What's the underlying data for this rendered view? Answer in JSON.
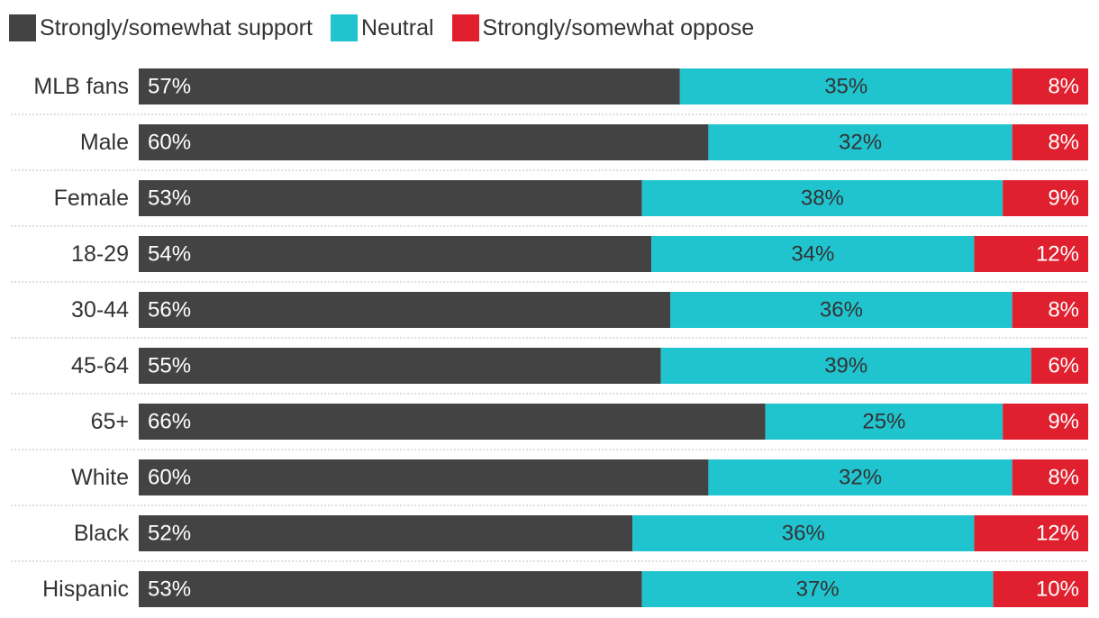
{
  "chart_data": {
    "type": "bar",
    "orientation": "horizontal",
    "stacked": true,
    "categories": [
      "MLB fans",
      "Male",
      "Female",
      "18-29",
      "30-44",
      "45-64",
      "65+",
      "White",
      "Black",
      "Hispanic"
    ],
    "series": [
      {
        "name": "Strongly/somewhat support",
        "color": "#434344",
        "label_color": "#ffffff",
        "values": [
          57,
          60,
          53,
          54,
          56,
          55,
          66,
          60,
          52,
          53
        ],
        "labels": [
          "57%",
          "60%",
          "53%",
          "54%",
          "56%",
          "55%",
          "66%",
          "60%",
          "52%",
          "53%"
        ]
      },
      {
        "name": "Neutral",
        "color": "#20c4cf",
        "label_color": "#333333",
        "values": [
          35,
          32,
          38,
          34,
          36,
          39,
          25,
          32,
          36,
          37
        ],
        "labels": [
          "35%",
          "32%",
          "38%",
          "34%",
          "36%",
          "39%",
          "25%",
          "32%",
          "36%",
          "37%"
        ]
      },
      {
        "name": "Strongly/somewhat oppose",
        "color": "#e0202e",
        "label_color": "#ffffff",
        "values": [
          8,
          8,
          9,
          12,
          8,
          6,
          9,
          8,
          12,
          10
        ],
        "labels": [
          "8%",
          "8%",
          "9%",
          "12%",
          "8%",
          "6%",
          "9%",
          "8%",
          "12%",
          "10%"
        ]
      }
    ],
    "xlim": [
      0,
      100
    ],
    "legend": "top-left",
    "grid": false
  }
}
